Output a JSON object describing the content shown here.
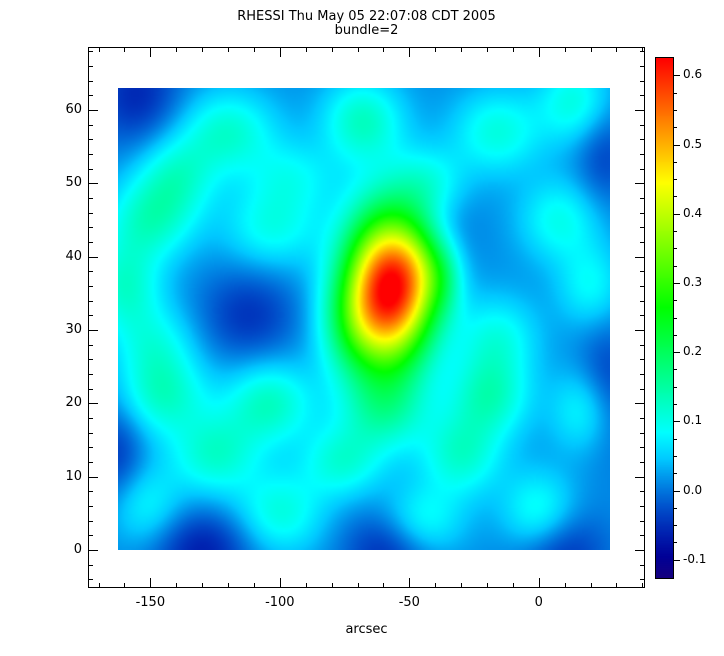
{
  "header": {
    "title": "RHESSI Thu May 05 22:07:08 CDT 2005",
    "subtitle": "bundle=2"
  },
  "chart_data": {
    "type": "heatmap",
    "title": "RHESSI Thu May 05 22:07:08 CDT 2005",
    "subtitle": "bundle=2",
    "xlabel": "arcsec",
    "ylabel": "",
    "x_ticks": [
      -150,
      -100,
      -50,
      0
    ],
    "y_ticks": [
      0,
      10,
      20,
      30,
      40,
      50,
      60
    ],
    "x_minor_step": 10,
    "y_minor_step": 2,
    "image_extent": {
      "x": [
        -162.5,
        27.5
      ],
      "y": [
        0,
        63
      ]
    },
    "grid": false,
    "colorbar": {
      "position": "right",
      "ticks": [
        -0.1,
        0.0,
        0.1,
        0.2,
        0.3,
        0.4,
        0.5,
        0.6
      ],
      "min": -0.125,
      "max": 0.625,
      "minor_step": 0.025
    },
    "peak_value": 0.62,
    "peak_location_arcsec": {
      "x": -58,
      "y": 36
    },
    "background_value_range": [
      -0.1,
      0.15
    ],
    "field": {
      "base": 0.015,
      "sources": [
        {
          "x": -58,
          "y": 35.5,
          "a": 0.6,
          "sx": 12,
          "sy": 7.5
        },
        {
          "x": -45,
          "y": 39,
          "a": 0.1,
          "sx": 8,
          "sy": 5
        },
        {
          "x": -73,
          "y": 30.5,
          "a": 0.09,
          "sx": 9,
          "sy": 5
        },
        {
          "x": -36,
          "y": 37,
          "a": 0.05,
          "sx": 5,
          "sy": 3.5
        }
      ],
      "blobs": [
        {
          "x": -120,
          "y": 57,
          "a": 0.1,
          "sx": 13,
          "sy": 4
        },
        {
          "x": -68,
          "y": 58.5,
          "a": 0.11,
          "sx": 11,
          "sy": 4
        },
        {
          "x": -16,
          "y": 57,
          "a": 0.09,
          "sx": 12,
          "sy": 4
        },
        {
          "x": 14,
          "y": 61,
          "a": 0.09,
          "sx": 10,
          "sy": 4
        },
        {
          "x": -140,
          "y": 51,
          "a": 0.09,
          "sx": 11,
          "sy": 4
        },
        {
          "x": -95,
          "y": 51,
          "a": 0.06,
          "sx": 12,
          "sy": 3.5
        },
        {
          "x": -42,
          "y": 50,
          "a": 0.07,
          "sx": 10,
          "sy": 3.5
        },
        {
          "x": -150,
          "y": 45,
          "a": 0.1,
          "sx": 12,
          "sy": 4
        },
        {
          "x": -103,
          "y": 44,
          "a": 0.08,
          "sx": 13,
          "sy": 4
        },
        {
          "x": 8,
          "y": 45,
          "a": 0.08,
          "sx": 11,
          "sy": 4
        },
        {
          "x": -160,
          "y": 36,
          "a": 0.1,
          "sx": 10,
          "sy": 4.5
        },
        {
          "x": 20,
          "y": 36,
          "a": 0.07,
          "sx": 9,
          "sy": 4
        },
        {
          "x": -148,
          "y": 28,
          "a": 0.07,
          "sx": 11,
          "sy": 4
        },
        {
          "x": -16,
          "y": 29,
          "a": 0.08,
          "sx": 11,
          "sy": 4
        },
        {
          "x": -145,
          "y": 21,
          "a": 0.1,
          "sx": 12,
          "sy": 4
        },
        {
          "x": -104,
          "y": 20,
          "a": 0.11,
          "sx": 12,
          "sy": 4
        },
        {
          "x": -60,
          "y": 19,
          "a": 0.1,
          "sx": 12,
          "sy": 4
        },
        {
          "x": -19,
          "y": 21,
          "a": 0.11,
          "sx": 11,
          "sy": 4
        },
        {
          "x": 18,
          "y": 19,
          "a": 0.08,
          "sx": 9,
          "sy": 4
        },
        {
          "x": -125,
          "y": 13,
          "a": 0.1,
          "sx": 12,
          "sy": 4
        },
        {
          "x": -76,
          "y": 12,
          "a": 0.09,
          "sx": 11,
          "sy": 3.5
        },
        {
          "x": -30,
          "y": 13,
          "a": 0.1,
          "sx": 11,
          "sy": 4
        },
        {
          "x": -100,
          "y": 5,
          "a": 0.09,
          "sx": 12,
          "sy": 4
        },
        {
          "x": -45,
          "y": 4,
          "a": 0.08,
          "sx": 11,
          "sy": 3.5
        },
        {
          "x": 0,
          "y": 5,
          "a": 0.09,
          "sx": 10,
          "sy": 4
        },
        {
          "x": -152,
          "y": 6,
          "a": 0.07,
          "sx": 10,
          "sy": 4
        },
        {
          "x": -155,
          "y": 62,
          "a": -0.07,
          "sx": 12,
          "sy": 5
        },
        {
          "x": -130,
          "y": 0,
          "a": -0.08,
          "sx": 14,
          "sy": 4
        },
        {
          "x": -58,
          "y": 0,
          "a": -0.07,
          "sx": 12,
          "sy": 4
        },
        {
          "x": 8,
          "y": 0,
          "a": -0.07,
          "sx": 12,
          "sy": 4
        },
        {
          "x": 26,
          "y": 22,
          "a": -0.06,
          "sx": 8,
          "sy": 6
        },
        {
          "x": -163,
          "y": 13,
          "a": -0.06,
          "sx": 8,
          "sy": 5
        },
        {
          "x": -112,
          "y": 32,
          "a": -0.06,
          "sx": 13,
          "sy": 4.5
        },
        {
          "x": 25,
          "y": 54,
          "a": -0.05,
          "sx": 8,
          "sy": 5
        },
        {
          "x": -40,
          "y": 44,
          "a": -0.04,
          "sx": 10,
          "sy": 4
        }
      ]
    }
  }
}
